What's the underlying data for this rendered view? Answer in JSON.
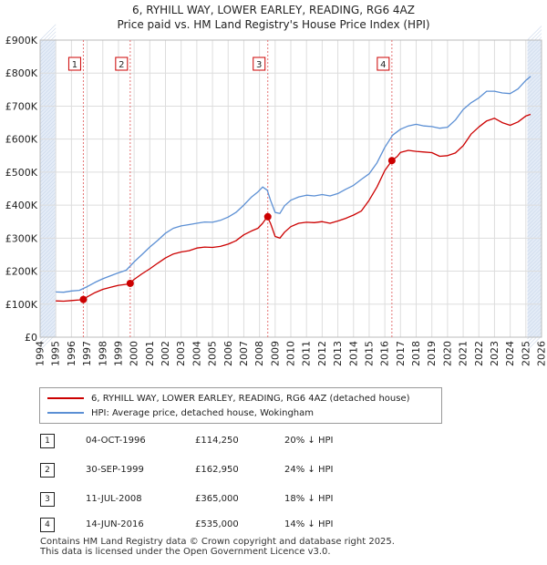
{
  "title_line1": "6, RYHILL WAY, LOWER EARLEY, READING, RG6 4AZ",
  "title_line2": "Price paid vs. HM Land Registry's House Price Index (HPI)",
  "colors": {
    "price": "#cc0000",
    "hpi": "#5b8fd4",
    "grid": "#dddddd",
    "marker": "#cc0000",
    "vline": "#e57373",
    "shade": "#e4ecf7"
  },
  "chart_data": {
    "type": "line",
    "title": "6, RYHILL WAY, LOWER EARLEY, READING, RG6 4AZ",
    "subtitle": "Price paid vs. HM Land Registry's House Price Index (HPI)",
    "xlabel": "",
    "ylabel": "",
    "xlim": [
      1994,
      2026
    ],
    "ylim": [
      0,
      900000
    ],
    "y_ticks": [
      0,
      100000,
      200000,
      300000,
      400000,
      500000,
      600000,
      700000,
      800000,
      900000
    ],
    "y_tick_labels": [
      "£0",
      "£100K",
      "£200K",
      "£300K",
      "£400K",
      "£500K",
      "£600K",
      "£700K",
      "£800K",
      "£900K"
    ],
    "x_ticks": [
      1994,
      1995,
      1996,
      1997,
      1998,
      1999,
      2000,
      2001,
      2002,
      2003,
      2004,
      2005,
      2006,
      2007,
      2008,
      2009,
      2010,
      2011,
      2012,
      2013,
      2014,
      2015,
      2016,
      2017,
      2018,
      2019,
      2020,
      2021,
      2022,
      2023,
      2024,
      2025,
      2026
    ],
    "x_tick_labels": [
      "1994",
      "1995",
      "1996",
      "1997",
      "1998",
      "1999",
      "2000",
      "2001",
      "2002",
      "2003",
      "2004",
      "2005",
      "2006",
      "2007",
      "2008",
      "2009",
      "2010",
      "2011",
      "2012",
      "2013",
      "2014",
      "2015",
      "2016",
      "2017",
      "2018",
      "2019",
      "2020",
      "2021",
      "2022",
      "2023",
      "2024",
      "2025",
      "2026"
    ],
    "shaded_ranges": [
      [
        1994,
        1995
      ],
      [
        2025.1,
        2026
      ]
    ],
    "grid": true,
    "series": [
      {
        "name": "6, RYHILL WAY, LOWER EARLEY, READING, RG6 4AZ (detached house)",
        "color": "#cc0000",
        "x": [
          1995.0,
          1995.5,
          1996.0,
          1996.5,
          1996.75,
          1997.0,
          1997.5,
          1998.0,
          1998.5,
          1999.0,
          1999.5,
          1999.75,
          2000.0,
          2000.5,
          2001.0,
          2001.5,
          2002.0,
          2002.5,
          2003.0,
          2003.5,
          2004.0,
          2004.5,
          2005.0,
          2005.5,
          2006.0,
          2006.5,
          2007.0,
          2007.5,
          2007.9,
          2008.2,
          2008.5,
          2008.7,
          2009.0,
          2009.3,
          2009.6,
          2010.0,
          2010.5,
          2011.0,
          2011.5,
          2012.0,
          2012.5,
          2013.0,
          2013.5,
          2014.0,
          2014.5,
          2015.0,
          2015.5,
          2016.0,
          2016.45,
          2016.8,
          2017.0,
          2017.5,
          2018.0,
          2018.5,
          2019.0,
          2019.5,
          2020.0,
          2020.5,
          2021.0,
          2021.5,
          2022.0,
          2022.5,
          2023.0,
          2023.5,
          2024.0,
          2024.5,
          2025.0,
          2025.3
        ],
        "values": [
          110000,
          109000,
          111000,
          113000,
          114250,
          122000,
          135000,
          145000,
          151000,
          157000,
          160000,
          162950,
          175000,
          192000,
          207000,
          224000,
          240000,
          252000,
          258000,
          262000,
          270000,
          273000,
          272000,
          275000,
          282000,
          292000,
          310000,
          322000,
          330000,
          345000,
          365000,
          345000,
          305000,
          300000,
          318000,
          335000,
          345000,
          348000,
          347000,
          350000,
          345000,
          352000,
          360000,
          370000,
          382000,
          415000,
          455000,
          505000,
          535000,
          548000,
          560000,
          566000,
          563000,
          561000,
          559000,
          548000,
          550000,
          558000,
          580000,
          615000,
          637000,
          655000,
          663000,
          650000,
          642000,
          652000,
          670000,
          675000
        ]
      },
      {
        "name": "HPI: Average price, detached house, Wokingham",
        "color": "#5b8fd4",
        "x": [
          1995.0,
          1995.5,
          1996.0,
          1996.5,
          1997.0,
          1997.5,
          1998.0,
          1998.5,
          1999.0,
          1999.5,
          2000.0,
          2000.5,
          2001.0,
          2001.5,
          2002.0,
          2002.5,
          2003.0,
          2003.5,
          2004.0,
          2004.5,
          2005.0,
          2005.5,
          2006.0,
          2006.5,
          2007.0,
          2007.5,
          2007.9,
          2008.2,
          2008.5,
          2008.7,
          2009.0,
          2009.3,
          2009.6,
          2010.0,
          2010.5,
          2011.0,
          2011.5,
          2012.0,
          2012.5,
          2013.0,
          2013.5,
          2014.0,
          2014.5,
          2015.0,
          2015.5,
          2016.0,
          2016.5,
          2017.0,
          2017.5,
          2018.0,
          2018.5,
          2019.0,
          2019.5,
          2020.0,
          2020.5,
          2021.0,
          2021.5,
          2022.0,
          2022.5,
          2023.0,
          2023.5,
          2024.0,
          2024.5,
          2025.0,
          2025.3
        ],
        "values": [
          137000,
          136000,
          140000,
          142000,
          153000,
          166000,
          177000,
          186000,
          195000,
          203000,
          228000,
          250000,
          273000,
          293000,
          315000,
          330000,
          337000,
          341000,
          345000,
          349000,
          348000,
          354000,
          364000,
          378000,
          400000,
          425000,
          440000,
          455000,
          445000,
          415000,
          378000,
          375000,
          398000,
          415000,
          425000,
          430000,
          428000,
          432000,
          428000,
          435000,
          448000,
          460000,
          478000,
          495000,
          528000,
          575000,
          612000,
          630000,
          640000,
          645000,
          640000,
          638000,
          633000,
          636000,
          658000,
          690000,
          710000,
          725000,
          745000,
          745000,
          740000,
          738000,
          752000,
          778000,
          790000
        ]
      }
    ],
    "transactions": [
      {
        "id": "1",
        "date": "04-OCT-1996",
        "x": 1996.76,
        "price": 114250,
        "price_label": "£114,250",
        "hpi_label": "20% ↓ HPI"
      },
      {
        "id": "2",
        "date": "30-SEP-1999",
        "x": 1999.75,
        "price": 162950,
        "price_label": "£162,950",
        "hpi_label": "24% ↓ HPI"
      },
      {
        "id": "3",
        "date": "11-JUL-2008",
        "x": 2008.53,
        "price": 365000,
        "price_label": "£365,000",
        "hpi_label": "18% ↓ HPI"
      },
      {
        "id": "4",
        "date": "14-JUN-2016",
        "x": 2016.45,
        "price": 535000,
        "price_label": "£535,000",
        "hpi_label": "14% ↓ HPI"
      }
    ]
  },
  "legend": {
    "price_label": "6, RYHILL WAY, LOWER EARLEY, READING, RG6 4AZ (detached house)",
    "hpi_label": "HPI: Average price, detached house, Wokingham"
  },
  "footer": {
    "line1": "Contains HM Land Registry data © Crown copyright and database right 2025.",
    "line2": "This data is licensed under the Open Government Licence v3.0."
  }
}
